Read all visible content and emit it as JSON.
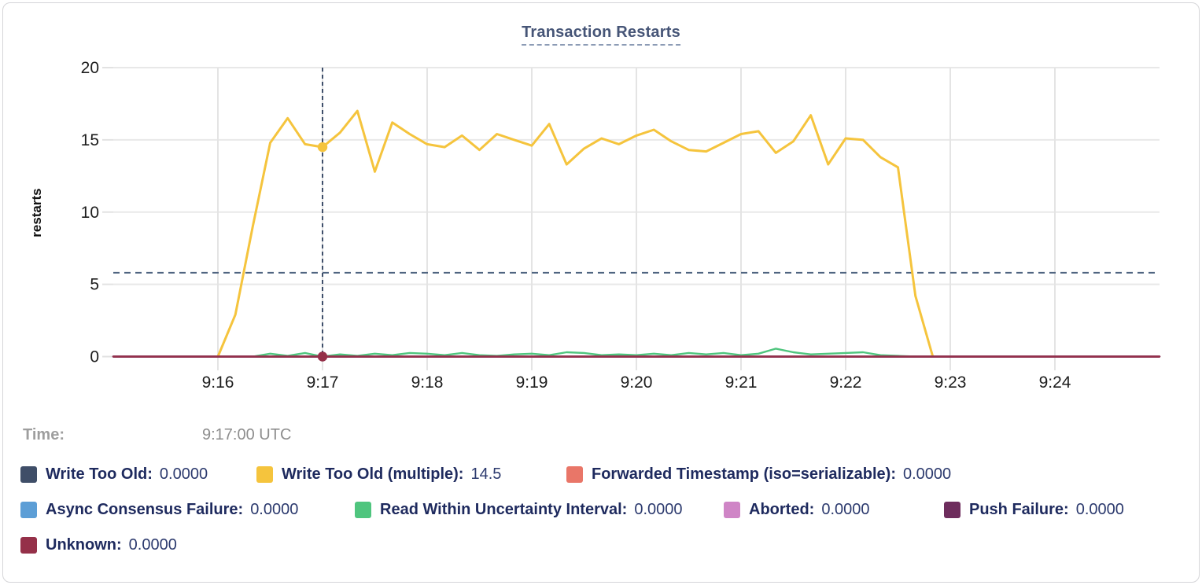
{
  "title": "Transaction Restarts",
  "tooltip": {
    "time_label": "Time:",
    "time_value": "9:17:00 UTC"
  },
  "chart_data": {
    "type": "line",
    "title": "Transaction Restarts",
    "xlabel": "",
    "ylabel": "restarts",
    "ylim": [
      0,
      20
    ],
    "y_ticks": [
      0,
      5,
      10,
      15,
      20
    ],
    "x_ticks": [
      "9:16",
      "9:17",
      "9:18",
      "9:19",
      "9:20",
      "9:21",
      "9:22",
      "9:23",
      "9:24"
    ],
    "x_domain": [
      "9:15:00",
      "9:25:00"
    ],
    "grid": true,
    "legend_position": "bottom",
    "cursor": {
      "time": "9:17:00",
      "hline_value": 5.8,
      "dots": [
        {
          "series_index": 1,
          "value": 14.5
        },
        {
          "series_index": 7,
          "value": 0
        }
      ]
    },
    "series": [
      {
        "name": "Write Too Old",
        "color": "#3f4e68",
        "value_at_cursor": "0.0000",
        "points": [
          [
            "9:15:00",
            0
          ],
          [
            "9:25:00",
            0
          ]
        ]
      },
      {
        "name": "Write Too Old (multiple)",
        "color": "#f5c43d",
        "value_at_cursor": "14.5",
        "points": [
          [
            "9:16:00",
            0
          ],
          [
            "9:16:10",
            2.9
          ],
          [
            "9:16:20",
            9.0
          ],
          [
            "9:16:30",
            14.8
          ],
          [
            "9:16:40",
            16.5
          ],
          [
            "9:16:50",
            14.7
          ],
          [
            "9:17:00",
            14.5
          ],
          [
            "9:17:10",
            15.5
          ],
          [
            "9:17:20",
            17.0
          ],
          [
            "9:17:30",
            12.8
          ],
          [
            "9:17:40",
            16.2
          ],
          [
            "9:17:50",
            15.4
          ],
          [
            "9:18:00",
            14.7
          ],
          [
            "9:18:10",
            14.5
          ],
          [
            "9:18:20",
            15.3
          ],
          [
            "9:18:30",
            14.3
          ],
          [
            "9:18:40",
            15.4
          ],
          [
            "9:18:50",
            15.0
          ],
          [
            "9:19:00",
            14.6
          ],
          [
            "9:19:10",
            16.1
          ],
          [
            "9:19:20",
            13.3
          ],
          [
            "9:19:30",
            14.4
          ],
          [
            "9:19:40",
            15.1
          ],
          [
            "9:19:50",
            14.7
          ],
          [
            "9:20:00",
            15.3
          ],
          [
            "9:20:10",
            15.7
          ],
          [
            "9:20:20",
            14.9
          ],
          [
            "9:20:30",
            14.3
          ],
          [
            "9:20:40",
            14.2
          ],
          [
            "9:20:50",
            14.8
          ],
          [
            "9:21:00",
            15.4
          ],
          [
            "9:21:10",
            15.6
          ],
          [
            "9:21:20",
            14.1
          ],
          [
            "9:21:30",
            14.9
          ],
          [
            "9:21:40",
            16.7
          ],
          [
            "9:21:50",
            13.3
          ],
          [
            "9:22:00",
            15.1
          ],
          [
            "9:22:10",
            15.0
          ],
          [
            "9:22:20",
            13.8
          ],
          [
            "9:22:30",
            13.1
          ],
          [
            "9:22:40",
            4.2
          ],
          [
            "9:22:50",
            0
          ]
        ]
      },
      {
        "name": "Forwarded Timestamp (iso=serializable)",
        "color": "#e97668",
        "value_at_cursor": "0.0000",
        "points": [
          [
            "9:15:00",
            0
          ],
          [
            "9:25:00",
            0
          ]
        ]
      },
      {
        "name": "Async Consensus Failure",
        "color": "#5c9ed6",
        "value_at_cursor": "0.0000",
        "points": [
          [
            "9:15:00",
            0
          ],
          [
            "9:25:00",
            0
          ]
        ]
      },
      {
        "name": "Read Within Uncertainty Interval",
        "color": "#4fc57e",
        "value_at_cursor": "0.0000",
        "points": [
          [
            "9:16:20",
            0
          ],
          [
            "9:16:30",
            0.2
          ],
          [
            "9:16:40",
            0.05
          ],
          [
            "9:16:50",
            0.25
          ],
          [
            "9:17:00",
            0
          ],
          [
            "9:17:10",
            0.15
          ],
          [
            "9:17:20",
            0.05
          ],
          [
            "9:17:30",
            0.2
          ],
          [
            "9:17:40",
            0.1
          ],
          [
            "9:17:50",
            0.25
          ],
          [
            "9:18:00",
            0.2
          ],
          [
            "9:18:10",
            0.1
          ],
          [
            "9:18:20",
            0.25
          ],
          [
            "9:18:30",
            0.1
          ],
          [
            "9:18:40",
            0.05
          ],
          [
            "9:18:50",
            0.15
          ],
          [
            "9:19:00",
            0.2
          ],
          [
            "9:19:10",
            0.1
          ],
          [
            "9:19:20",
            0.3
          ],
          [
            "9:19:30",
            0.25
          ],
          [
            "9:19:40",
            0.1
          ],
          [
            "9:19:50",
            0.15
          ],
          [
            "9:20:00",
            0.1
          ],
          [
            "9:20:10",
            0.2
          ],
          [
            "9:20:20",
            0.1
          ],
          [
            "9:20:30",
            0.25
          ],
          [
            "9:20:40",
            0.15
          ],
          [
            "9:20:50",
            0.25
          ],
          [
            "9:21:00",
            0.1
          ],
          [
            "9:21:10",
            0.2
          ],
          [
            "9:21:20",
            0.55
          ],
          [
            "9:21:30",
            0.3
          ],
          [
            "9:21:40",
            0.15
          ],
          [
            "9:21:50",
            0.2
          ],
          [
            "9:22:00",
            0.25
          ],
          [
            "9:22:10",
            0.3
          ],
          [
            "9:22:20",
            0.1
          ],
          [
            "9:22:30",
            0.05
          ],
          [
            "9:22:40",
            0
          ]
        ]
      },
      {
        "name": "Aborted",
        "color": "#cf85c6",
        "value_at_cursor": "0.0000",
        "points": [
          [
            "9:15:00",
            0
          ],
          [
            "9:25:00",
            0
          ]
        ]
      },
      {
        "name": "Push Failure",
        "color": "#6e2d5d",
        "value_at_cursor": "0.0000",
        "points": [
          [
            "9:15:00",
            0
          ],
          [
            "9:25:00",
            0
          ]
        ]
      },
      {
        "name": "Unknown",
        "color": "#953049",
        "value_at_cursor": "0.0000",
        "points": [
          [
            "9:15:00",
            0
          ],
          [
            "9:25:00",
            0
          ]
        ]
      }
    ]
  }
}
